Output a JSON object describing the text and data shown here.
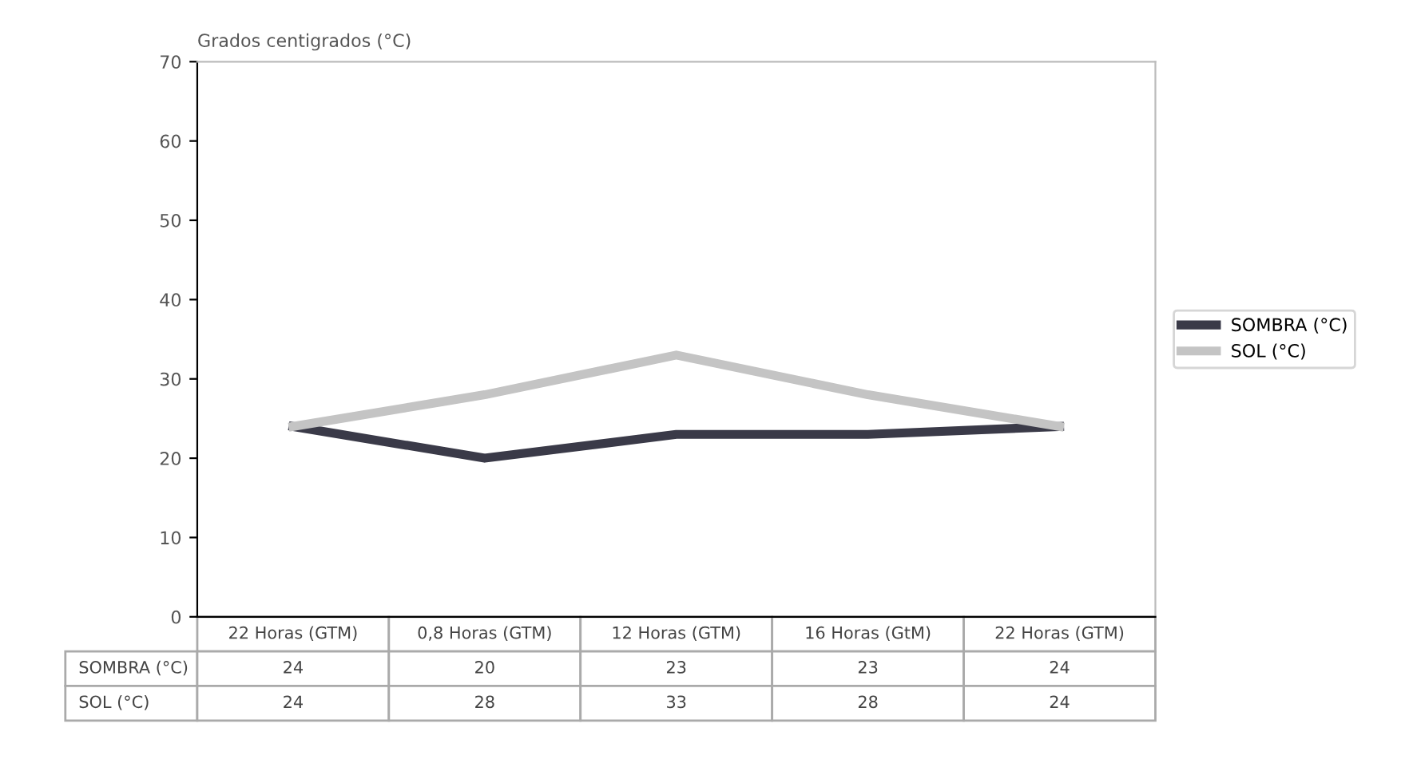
{
  "chart_data": {
    "type": "line",
    "ylabel": "Grados centigrados (°C)",
    "categories": [
      "22 Horas (GTM)",
      "0,8 Horas (GTM)",
      "12 Horas (GTM)",
      "16 Horas (GtM)",
      "22 Horas (GTM)"
    ],
    "series": [
      {
        "name": "SOMBRA (°C)",
        "color": "#3a3a48",
        "values": [
          24,
          20,
          23,
          23,
          24
        ]
      },
      {
        "name": "SOL (°C)",
        "color": "#c4c4c4",
        "values": [
          24,
          28,
          33,
          28,
          24
        ]
      }
    ],
    "ylim": [
      0,
      70
    ],
    "yticks": [
      0,
      10,
      20,
      30,
      40,
      50,
      60,
      70
    ],
    "data_labels": true,
    "legend": "right",
    "grid": false,
    "marker": "none",
    "line_style": "solid"
  }
}
